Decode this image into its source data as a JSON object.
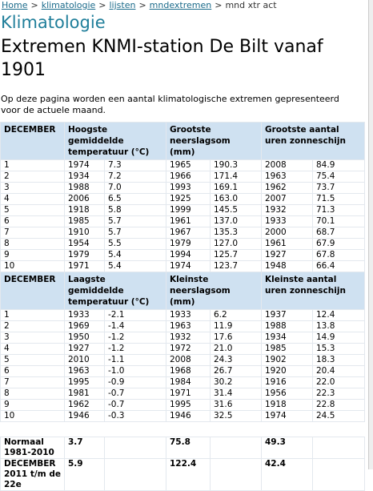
{
  "breadcrumb": {
    "items": [
      "Home",
      "klimatologie",
      "lijsten",
      "mndextremen",
      "mnd xtr act"
    ],
    "separator": ">"
  },
  "section": "Klimatologie",
  "title": "Extremen KNMI-station De Bilt vanaf 1901",
  "intro": "Op deze pagina worden een aantal klimatologische extremen gepresenteerd voor de actuele maand.",
  "tables": [
    {
      "header": [
        "DECEMBER",
        "Hoogste gemiddelde temperatuur (°C)",
        "Grootste neerslagsom (mm)",
        "Grootste aantal uren zonneschijn"
      ],
      "rows": [
        [
          "1",
          "1974",
          "7.3",
          "1965",
          "190.3",
          "2008",
          "84.9"
        ],
        [
          "2",
          "1934",
          "7.2",
          "1966",
          "171.4",
          "1963",
          "75.4"
        ],
        [
          "3",
          "1988",
          "7.0",
          "1993",
          "169.1",
          "1962",
          "73.7"
        ],
        [
          "4",
          "2006",
          "6.5",
          "1925",
          "163.0",
          "2007",
          "71.5"
        ],
        [
          "5",
          "1918",
          "5.8",
          "1999",
          "145.5",
          "1932",
          "71.3"
        ],
        [
          "6",
          "1985",
          "5.7",
          "1961",
          "137.0",
          "1933",
          "70.1"
        ],
        [
          "7",
          "1910",
          "5.7",
          "1967",
          "135.3",
          "2000",
          "68.7"
        ],
        [
          "8",
          "1954",
          "5.5",
          "1979",
          "127.0",
          "1961",
          "67.9"
        ],
        [
          "9",
          "1979",
          "5.4",
          "1994",
          "125.7",
          "1927",
          "67.8"
        ],
        [
          "10",
          "1971",
          "5.4",
          "1974",
          "123.7",
          "1948",
          "66.4"
        ]
      ]
    },
    {
      "header": [
        "DECEMBER",
        "Laagste gemiddelde temperatuur (°C)",
        "Kleinste neerslagsom (mm)",
        "Kleinste aantal uren zonneschijn"
      ],
      "rows": [
        [
          "1",
          "1933",
          "-2.1",
          "1933",
          "6.2",
          "1937",
          "12.4"
        ],
        [
          "2",
          "1969",
          "-1.4",
          "1963",
          "11.9",
          "1988",
          "13.8"
        ],
        [
          "3",
          "1950",
          "-1.2",
          "1932",
          "17.6",
          "1934",
          "14.9"
        ],
        [
          "4",
          "1927",
          "-1.2",
          "1972",
          "21.0",
          "1985",
          "15.3"
        ],
        [
          "5",
          "2010",
          "-1.1",
          "2008",
          "24.3",
          "1902",
          "18.3"
        ],
        [
          "6",
          "1963",
          "-1.0",
          "1968",
          "26.7",
          "1920",
          "20.4"
        ],
        [
          "7",
          "1995",
          "-0.9",
          "1984",
          "30.2",
          "1916",
          "22.0"
        ],
        [
          "8",
          "1981",
          "-0.7",
          "1971",
          "31.4",
          "1956",
          "22.3"
        ],
        [
          "9",
          "1962",
          "-0.7",
          "1995",
          "31.6",
          "1918",
          "22.8"
        ],
        [
          "10",
          "1946",
          "-0.3",
          "1946",
          "32.5",
          "1974",
          "24.5"
        ]
      ]
    }
  ],
  "summary": [
    {
      "label": "Normaal 1981-2010",
      "temperature": "3.7",
      "precipitation": "75.8",
      "sunshine": "49.3"
    },
    {
      "label": "DECEMBER 2011 t/m de 22e",
      "temperature": "5.9",
      "precipitation": "122.4",
      "sunshine": "42.4"
    }
  ]
}
